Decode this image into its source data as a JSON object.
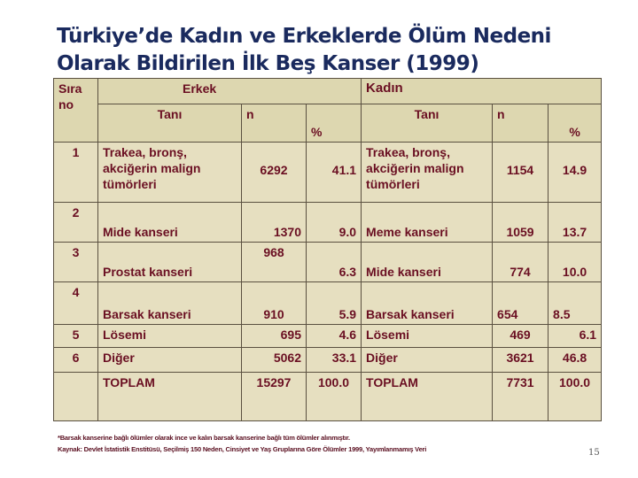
{
  "title": "Türkiye’de Kadın ve Erkeklerde Ölüm Nedeni Olarak Bildirilen İlk  Beş Kanser (1999)",
  "table": {
    "sira_no": "Sıra no",
    "erkek": "Erkek",
    "kadin": "Kadın",
    "tani": "Tanı",
    "n": "n",
    "pct": "%",
    "rows": [
      {
        "no": "1",
        "m_tani": "Trakea, bronş, akciğerin malign tümörleri",
        "m_n": "6292",
        "m_p": "41.1",
        "f_tani": "Trakea, bronş, akciğerin malign tümörleri",
        "f_n": "1154",
        "f_p": "14.9"
      },
      {
        "no": "2",
        "m_tani": "Mide kanseri",
        "m_n": "1370",
        "m_p": "9.0",
        "f_tani": "Meme kanseri",
        "f_n": "1059",
        "f_p": "13.7"
      },
      {
        "no": "3",
        "m_tani": "Prostat kanseri",
        "m_n": "968",
        "m_p": "6.3",
        "f_tani": "Mide kanseri",
        "f_n": "774",
        "f_p": "10.0"
      },
      {
        "no": "4",
        "m_tani": "Barsak kanseri",
        "m_n": "910",
        "m_p": "5.9",
        "f_tani": "Barsak kanseri",
        "f_n": "654",
        "f_p": "8.5"
      },
      {
        "no": "5",
        "m_tani": "Lösemi",
        "m_n": "695",
        "m_p": "4.6",
        "f_tani": "Lösemi",
        "f_n": "469",
        "f_p": "6.1"
      },
      {
        "no": "6",
        "m_tani": "Diğer",
        "m_n": "5062",
        "m_p": "33.1",
        "f_tani": "Diğer",
        "f_n": "3621",
        "f_p": "46.8"
      },
      {
        "no": "",
        "m_tani": "TOPLAM",
        "m_n": "15297",
        "m_p": "100.0",
        "f_tani": "TOPLAM",
        "f_n": "7731",
        "f_p": "100.0"
      }
    ]
  },
  "footnote1": "*Barsak kanserine bağlı ölümler olarak ince ve kalın barsak kanserine bağlı  tüm ölümler alınmıştır.",
  "footnote2": "Kaynak: Devlet İstatistik  Enstitüsü,  Seçilmiş 150 Neden, Cinsiyet ve Yaş Gruplarına Göre Ölümler 1999, Yayımlanmamış  Veri",
  "page_number": "15"
}
